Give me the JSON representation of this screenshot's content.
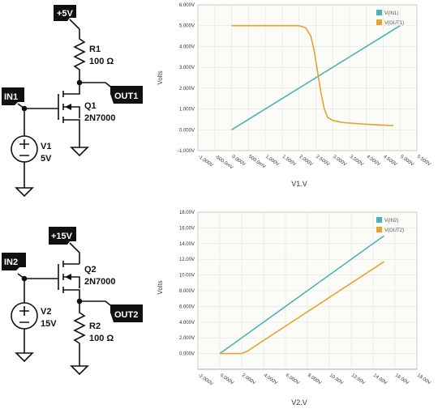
{
  "schematic1": {
    "supply_flag": "+5V",
    "input_flag": "IN1",
    "output_flag": "OUT1",
    "resistor_ref": "R1",
    "resistor_value": "100 Ω",
    "transistor_ref": "Q1",
    "transistor_part": "2N7000",
    "source_ref": "V1",
    "source_value": "5V"
  },
  "schematic2": {
    "supply_flag": "+15V",
    "input_flag": "IN2",
    "output_flag": "OUT2",
    "resistor_ref": "R2",
    "resistor_value": "100 Ω",
    "transistor_ref": "Q2",
    "transistor_part": "2N7000",
    "source_ref": "V2",
    "source_value": "15V"
  },
  "colors": {
    "in": "#4ab3b8",
    "out": "#e3a52e",
    "flag": "#111111"
  },
  "chart_data": [
    {
      "type": "line",
      "ylabel": "Volts",
      "xlabel": "V1.V",
      "xlim": [
        -1.0,
        5.5
      ],
      "ylim": [
        -1.0,
        6.0
      ],
      "x_tick_labels": [
        "-1.000V",
        "-500.0mV",
        "0.000V",
        "500.0mV",
        "1.000V",
        "1.500V",
        "2.000V",
        "2.500V",
        "3.000V",
        "3.500V",
        "4.000V",
        "4.500V",
        "5.000V",
        "5.500V"
      ],
      "x_ticks": [
        -1.0,
        -0.5,
        0.0,
        0.5,
        1.0,
        1.5,
        2.0,
        2.5,
        3.0,
        3.5,
        4.0,
        4.5,
        5.0,
        5.5
      ],
      "y_tick_labels": [
        "-1.000V",
        "0.000V",
        "1.000V",
        "2.000V",
        "3.000V",
        "4.000V",
        "5.000V",
        "6.000V"
      ],
      "y_ticks": [
        -1.0,
        0.0,
        1.0,
        2.0,
        3.0,
        4.0,
        5.0,
        6.0
      ],
      "grid": true,
      "legend": "top-right",
      "series": [
        {
          "name": "V(IN1)",
          "x": [
            0.0,
            5.0
          ],
          "y": [
            0.0,
            5.0
          ]
        },
        {
          "name": "V(OUT1)",
          "x": [
            0.0,
            2.0,
            2.2,
            2.35,
            2.45,
            2.55,
            2.65,
            2.75,
            2.85,
            3.0,
            3.3,
            3.7,
            4.2,
            4.8
          ],
          "y": [
            5.0,
            5.0,
            4.9,
            4.5,
            3.8,
            2.8,
            1.8,
            1.0,
            0.6,
            0.45,
            0.35,
            0.3,
            0.25,
            0.2
          ]
        }
      ]
    },
    {
      "type": "line",
      "ylabel": "Volts",
      "xlabel": "V2.V",
      "xlim": [
        -2.0,
        18.0
      ],
      "ylim": [
        -2.0,
        18.0
      ],
      "x_tick_labels": [
        "-2.000V",
        "0.000V",
        "2.000V",
        "4.000V",
        "6.000V",
        "8.000V",
        "10.00V",
        "12.00V",
        "14.00V",
        "16.00V",
        "18.00V"
      ],
      "x_ticks": [
        -2.0,
        0.0,
        2.0,
        4.0,
        6.0,
        8.0,
        10.0,
        12.0,
        14.0,
        16.0,
        18.0
      ],
      "y_tick_labels": [
        "0.000V",
        "2.000V",
        "4.000V",
        "6.000V",
        "8.000V",
        "10.00V",
        "12.00V",
        "14.00V",
        "16.00V",
        "18.00V"
      ],
      "y_ticks": [
        0.0,
        2.0,
        4.0,
        6.0,
        8.0,
        10.0,
        12.0,
        14.0,
        16.0,
        18.0
      ],
      "grid": true,
      "legend": "top-right",
      "series": [
        {
          "name": "V(IN2)",
          "x": [
            0.0,
            15.0
          ],
          "y": [
            0.0,
            15.0
          ]
        },
        {
          "name": "V(OUT2)",
          "x": [
            0.0,
            2.0,
            2.5,
            15.0
          ],
          "y": [
            0.0,
            0.0,
            0.3,
            11.7
          ]
        }
      ]
    }
  ]
}
